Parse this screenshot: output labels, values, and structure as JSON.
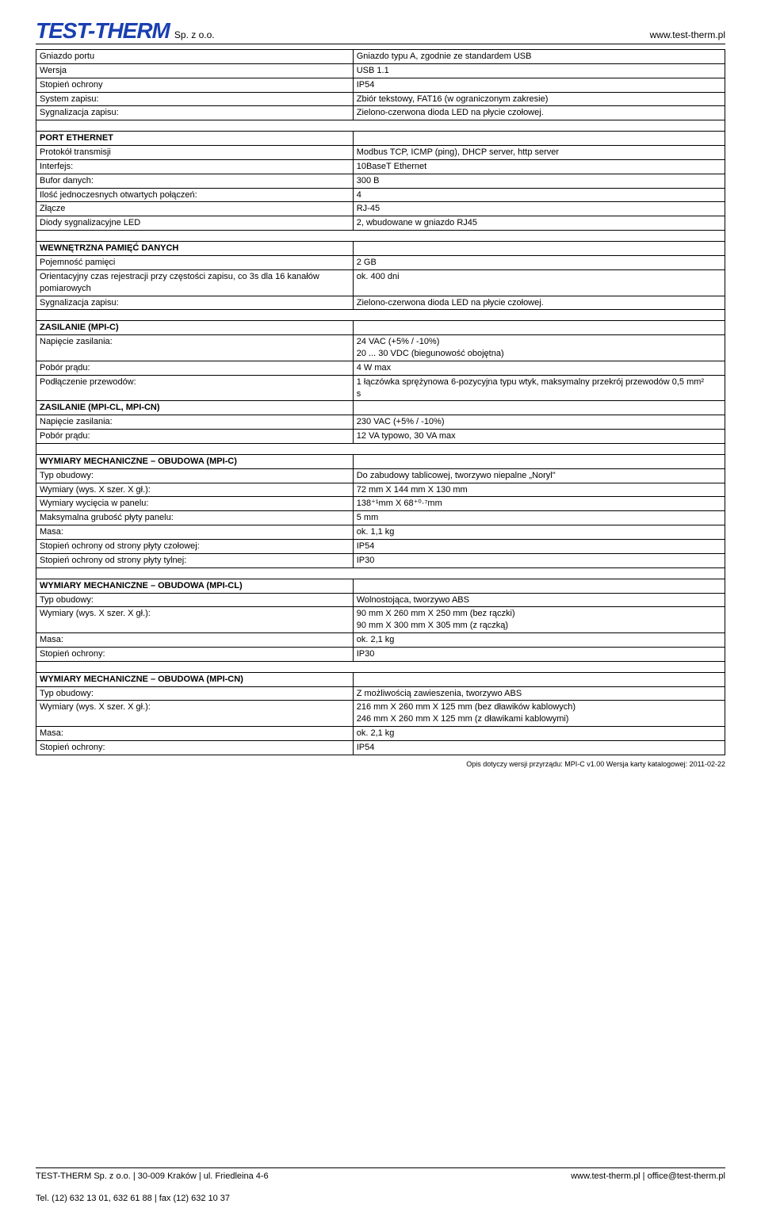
{
  "header": {
    "logo": "TEST-THERM",
    "logo_suffix": "Sp. z o.o.",
    "url": "www.test-therm.pl",
    "logo_color": "#1a3fb0"
  },
  "sections": [
    {
      "rows": [
        {
          "label": "Gniazdo portu",
          "value": "Gniazdo typu A, zgodnie ze standardem USB"
        },
        {
          "label": "Wersja",
          "value": "USB 1.1"
        },
        {
          "label": "Stopień ochrony",
          "value": "IP54"
        },
        {
          "label": "System zapisu:",
          "value": "Zbiór tekstowy, FAT16 (w ograniczonym zakresie)"
        },
        {
          "label": "Sygnalizacja zapisu:",
          "value": "Zielono-czerwona dioda LED na płycie czołowej."
        }
      ]
    },
    {
      "heading": "PORT ETHERNET",
      "rows": [
        {
          "label": "Protokół transmisji",
          "value": "Modbus TCP, ICMP (ping), DHCP server, http server"
        },
        {
          "label": "Interfejs:",
          "value": "10BaseT Ethernet"
        },
        {
          "label": "Bufor danych:",
          "value": "300 B"
        },
        {
          "label": "Ilość jednoczesnych otwartych połączeń:",
          "value": "4"
        },
        {
          "label": "Złącze",
          "value": "RJ-45"
        },
        {
          "label": "Diody sygnalizacyjne LED",
          "value": "2, wbudowane w gniazdo RJ45"
        }
      ]
    },
    {
      "heading": "WEWNĘTRZNA PAMIĘĆ DANYCH",
      "rows": [
        {
          "label": "Pojemność pamięci",
          "value": "2 GB"
        },
        {
          "label": "Orientacyjny czas rejestracji przy częstości zapisu, co 3s dla 16 kanałów pomiarowych",
          "value": "ok. 400 dni"
        },
        {
          "label": "Sygnalizacja zapisu:",
          "value": "Zielono-czerwona dioda LED na płycie czołowej."
        }
      ]
    },
    {
      "heading": "ZASILANIE (MPI-C)",
      "rows": [
        {
          "label": "Napięcie zasilania:",
          "value": "24 VAC (+5% / -10%)\n20 ... 30 VDC (biegunowość obojętna)"
        },
        {
          "label": "Pobór prądu:",
          "value": "4 W max"
        },
        {
          "label": "Podłączenie przewodów:",
          "value": "1 łączówka sprężynowa 6-pozycyjna typu wtyk, maksymalny przekrój przewodów 0,5 mm²\ns"
        }
      ]
    },
    {
      "heading": "ZASILANIE (MPI-CL, MPI-CN)",
      "no_spacer": true,
      "rows": [
        {
          "label": "Napięcie zasilania:",
          "value": "230 VAC (+5% / -10%)"
        },
        {
          "label": "Pobór prądu:",
          "value": "12 VA typowo, 30 VA max"
        }
      ]
    },
    {
      "heading": "WYMIARY MECHANICZNE – OBUDOWA (MPI-C)",
      "rows": [
        {
          "label": "Typ obudowy:",
          "value": "Do zabudowy tablicowej, tworzywo niepalne „Noryl\""
        },
        {
          "label": "Wymiary (wys. X szer. X gł.):",
          "value": "72 mm X 144 mm X 130 mm"
        },
        {
          "label": "Wymiary wycięcia w panelu:",
          "value": "138⁺¹mm X 68⁺⁰·⁷mm"
        },
        {
          "label": "Maksymalna grubość płyty panelu:",
          "value": "5 mm"
        },
        {
          "label": "Masa:",
          "value": "ok. 1,1 kg"
        },
        {
          "label": "Stopień ochrony od strony płyty czołowej:",
          "value": "IP54"
        },
        {
          "label": "Stopień ochrony od strony płyty tylnej:",
          "value": "IP30"
        }
      ]
    },
    {
      "heading": "WYMIARY MECHANICZNE – OBUDOWA (MPI-CL)",
      "rows": [
        {
          "label": "Typ obudowy:",
          "value": "Wolnostojąca, tworzywo ABS"
        },
        {
          "label": "Wymiary (wys. X szer. X gł.):",
          "value": "90 mm X 260 mm X 250 mm (bez rączki)\n90 mm X 300 mm X 305 mm (z rączką)"
        },
        {
          "label": "Masa:",
          "value": "ok. 2,1 kg"
        },
        {
          "label": "Stopień ochrony:",
          "value": "IP30"
        }
      ]
    },
    {
      "heading": "WYMIARY MECHANICZNE – OBUDOWA (MPI-CN)",
      "rows": [
        {
          "label": "Typ obudowy:",
          "value": "Z możliwością zawieszenia, tworzywo ABS"
        },
        {
          "label": "Wymiary (wys. X szer. X gł.):",
          "value": "216 mm X 260 mm X 125 mm (bez dławików kablowych)\n246 mm X 260 mm X 125 mm (z dławikami kablowymi)"
        },
        {
          "label": "Masa:",
          "value": "ok. 2,1 kg"
        },
        {
          "label": "Stopień ochrony:",
          "value": "IP54"
        }
      ]
    }
  ],
  "footnote": "Opis dotyczy wersji przyrządu: MPI-C v1.00 Wersja karty katalogowej: 2011-02-22",
  "footer": {
    "left": "TEST-THERM Sp. z o.o. | 30-009 Kraków | ul. Friedleina 4-6",
    "right": "www.test-therm.pl | office@test-therm.pl",
    "tel": "Tel. (12) 632 13 01, 632 61 88 | fax (12) 632 10 37"
  }
}
